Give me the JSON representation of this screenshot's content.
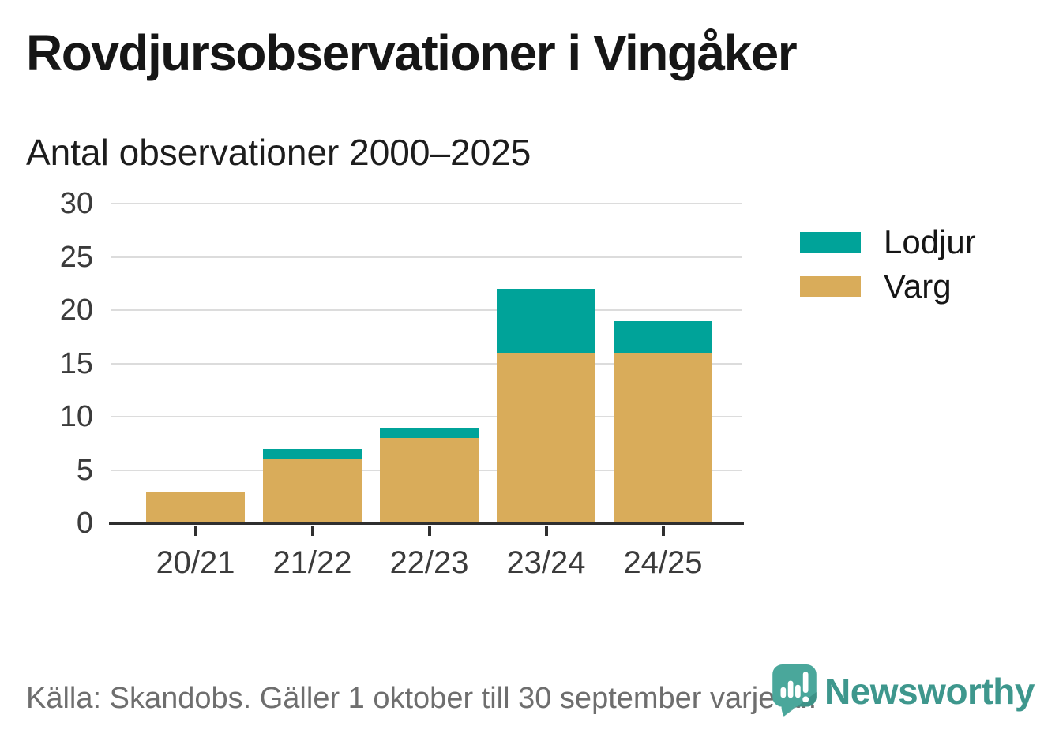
{
  "chart_data": {
    "type": "bar",
    "stacked": true,
    "title": "Rovdjursobservationer i Vingåker",
    "subtitle": "Antal observationer 2000–2025",
    "categories": [
      "20/21",
      "21/22",
      "22/23",
      "23/24",
      "24/25"
    ],
    "series": [
      {
        "name": "Lodjur",
        "color": "#00A399",
        "values": [
          0,
          1,
          1,
          6,
          3
        ]
      },
      {
        "name": "Varg",
        "color": "#D9AC5A",
        "values": [
          3,
          6,
          8,
          16,
          16
        ]
      }
    ],
    "stack_order_bottom_to_top": [
      "Varg",
      "Lodjur"
    ],
    "totals": [
      3,
      7,
      9,
      22,
      19
    ],
    "xlabel": "",
    "ylabel": "",
    "ylim": [
      0,
      30
    ],
    "yticks": [
      0,
      5,
      10,
      15,
      20,
      25,
      30
    ],
    "grid": true,
    "legend_position": "right",
    "axis_color": "#2F2F2F",
    "gridline_color": "#DCDCDC"
  },
  "legend": [
    {
      "label": "Lodjur",
      "color": "#00A399"
    },
    {
      "label": "Varg",
      "color": "#D9AC5A"
    }
  ],
  "footer": {
    "source": "Källa: Skandobs. Gäller 1 oktober till 30 september varje år.",
    "brand": "Newsworthy",
    "brand_color": "#3E978D"
  },
  "icons": {
    "brand_logo": "newsworthy-speech-bubble-bar-chart-icon"
  }
}
